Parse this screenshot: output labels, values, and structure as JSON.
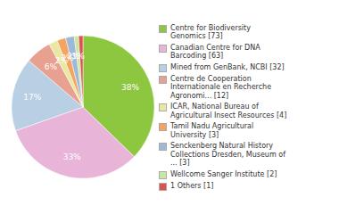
{
  "chart_data": {
    "type": "pie",
    "categories": [
      "Centre for Biodiversity\nGenomics [73]",
      "Canadian Centre for DNA\nBarcoding [63]",
      "Mined from GenBank, NCBI [32]",
      "Centre de Cooperation\nInternationale en Recherche\nAgronomi... [12]",
      "ICAR, National Bureau of\nAgricultural Insect Resources [4]",
      "Tamil Nadu Agricultural\nUniversity [3]",
      "Senckenberg Natural History\nCollections Dresden, Museum of\n... [3]",
      "Wellcome Sanger Institute [2]",
      "1 Others [1]"
    ],
    "values": [
      38,
      33,
      17,
      6,
      2,
      2,
      2,
      1,
      1
    ],
    "value_labels": [
      "38%",
      "33%",
      "17%",
      "6%",
      "2%",
      "2%",
      "2%",
      "1%",
      null
    ],
    "colors": [
      "#8dc63f",
      "#e8b4d8",
      "#b8cfe4",
      "#e8a090",
      "#e8e8a0",
      "#f4a460",
      "#a0b8d8",
      "#c8e8a0",
      "#e05050"
    ],
    "data_labels": true,
    "legend": "right"
  }
}
